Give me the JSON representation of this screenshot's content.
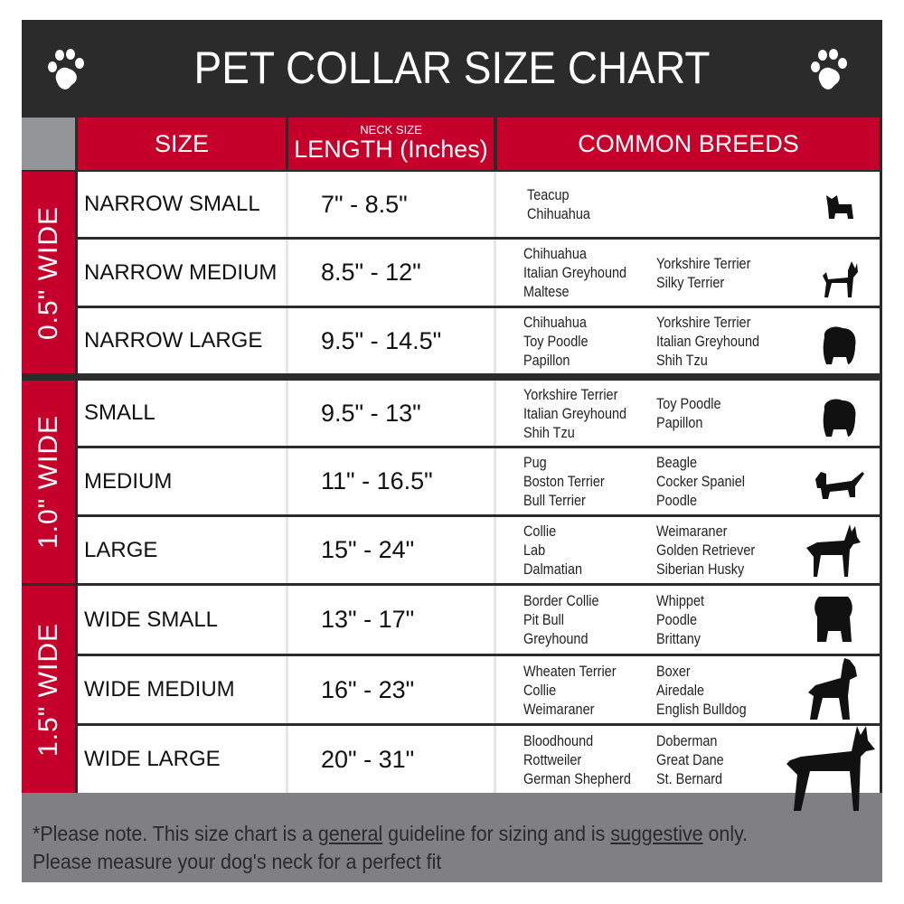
{
  "title": "PET COLLAR SIZE CHART",
  "headers": {
    "size": "SIZE",
    "length_small": "NECK SIZE",
    "length": "LENGTH (Inches)",
    "breeds": "COMMON BREEDS"
  },
  "colors": {
    "accent": "#c4002b",
    "dark": "#2b2b2b",
    "footer": "#808083"
  },
  "groups": [
    {
      "label": "0.5\" WIDE",
      "rows": [
        {
          "size": "NARROW SMALL",
          "length": "7\" - 8.5\"",
          "breeds_col1": [
            "Teacup",
            "Chihuahua"
          ],
          "breeds_col2": [],
          "icon": "yorkie-silhouette-icon"
        },
        {
          "size": "NARROW MEDIUM",
          "length": "8.5\" - 12\"",
          "breeds_col1": [
            "Chihuahua",
            "Italian Greyhound",
            "Maltese"
          ],
          "breeds_col2": [
            "Yorkshire Terrier",
            "Silky Terrier"
          ],
          "icon": "chihuahua-silhouette-icon"
        },
        {
          "size": "NARROW LARGE",
          "length": "9.5\" - 14.5\"",
          "breeds_col1": [
            "Chihuahua",
            "Toy Poodle",
            "Papillon"
          ],
          "breeds_col2": [
            "Yorkshire Terrier",
            "Italian Greyhound",
            "Shih Tzu"
          ],
          "icon": "pomeranian-silhouette-icon"
        }
      ]
    },
    {
      "label": "1.0\" WIDE",
      "rows": [
        {
          "size": "SMALL",
          "length": "9.5\" - 13\"",
          "breeds_col1": [
            "Yorkshire Terrier",
            "Italian Greyhound",
            "Shih Tzu"
          ],
          "breeds_col2": [
            "Toy Poodle",
            "Papillon"
          ],
          "icon": "pomeranian-silhouette-icon"
        },
        {
          "size": "MEDIUM",
          "length": "11\" - 16.5\"",
          "breeds_col1": [
            "Pug",
            "Boston Terrier",
            "Bull Terrier"
          ],
          "breeds_col2": [
            "Beagle",
            "Cocker Spaniel",
            "Poodle"
          ],
          "icon": "dachshund-silhouette-icon"
        },
        {
          "size": "LARGE",
          "length": "15\" - 24\"",
          "breeds_col1": [
            "Collie",
            "Lab",
            "Dalmatian"
          ],
          "breeds_col2": [
            "Weimaraner",
            "Golden Retriever",
            "Siberian Husky"
          ],
          "icon": "shepherd-silhouette-icon"
        }
      ]
    },
    {
      "label": "1.5\" WIDE",
      "rows": [
        {
          "size": "WIDE SMALL",
          "length": "13\" - 17\"",
          "breeds_col1": [
            "Border Collie",
            "Pit Bull",
            "Greyhound"
          ],
          "breeds_col2": [
            "Whippet",
            "Poodle",
            "Brittany"
          ],
          "icon": "bulldog-silhouette-icon"
        },
        {
          "size": "WIDE MEDIUM",
          "length": "16\" - 23\"",
          "breeds_col1": [
            "Wheaten Terrier",
            "Collie",
            "Weimaraner"
          ],
          "breeds_col2": [
            "Boxer",
            "Airedale",
            "English Bulldog"
          ],
          "icon": "pitbull-silhouette-icon"
        },
        {
          "size": "WIDE LARGE",
          "length": "20\" - 31\"",
          "breeds_col1": [
            "Bloodhound",
            "Rottweiler",
            "German Shepherd"
          ],
          "breeds_col2": [
            "Doberman",
            "Great Dane",
            "St. Bernard"
          ],
          "icon": "doberman-silhouette-icon"
        }
      ]
    }
  ],
  "footer": {
    "part1": "*Please note. This size chart is a",
    "general": "general",
    "part2": " guideline for sizing and is",
    "suggestive": "suggestive",
    "part3": " only.",
    "line2": "Please measure your dog's neck for a perfect fit"
  }
}
